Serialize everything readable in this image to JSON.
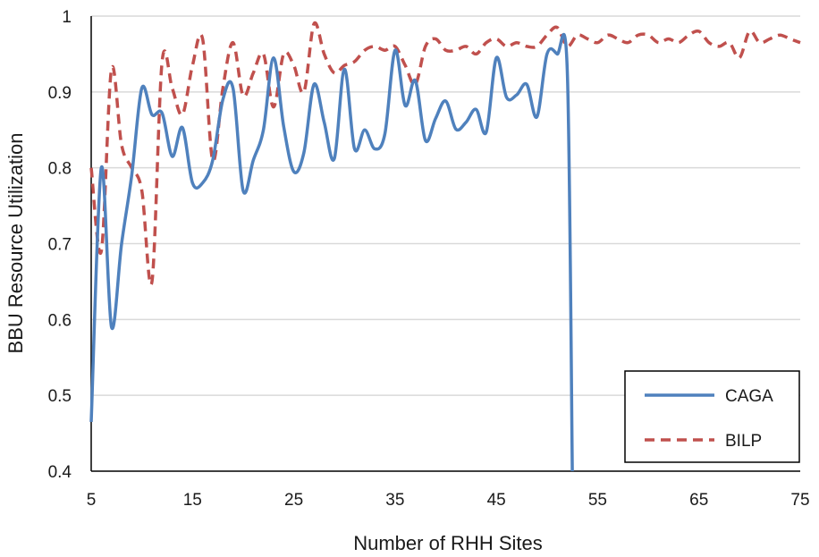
{
  "chart_data": {
    "type": "line",
    "title": "",
    "xlabel": "Number of RHH Sites",
    "ylabel": "BBU Resource Utilization",
    "xlim": [
      5,
      75
    ],
    "ylim": [
      0.4,
      1.0
    ],
    "xticks": [
      5,
      15,
      25,
      35,
      45,
      55,
      65,
      75
    ],
    "yticks": [
      0.4,
      0.5,
      0.6,
      0.7,
      0.8,
      0.9,
      1.0
    ],
    "ytick_labels": [
      "0.4",
      "0.5",
      "0.6",
      "0.7",
      "0.8",
      "0.9",
      "1"
    ],
    "grid": "horizontal",
    "legend_position": "bottom-right",
    "series": [
      {
        "name": "CAGA",
        "color": "#4f81bd",
        "style": "solid",
        "points": [
          [
            5,
            0.465
          ],
          [
            6,
            0.8
          ],
          [
            7,
            0.59
          ],
          [
            8,
            0.7
          ],
          [
            9,
            0.79
          ],
          [
            10,
            0.905
          ],
          [
            11,
            0.87
          ],
          [
            12,
            0.872
          ],
          [
            13,
            0.815
          ],
          [
            14,
            0.853
          ],
          [
            15,
            0.78
          ],
          [
            16,
            0.78
          ],
          [
            17,
            0.81
          ],
          [
            18,
            0.89
          ],
          [
            19,
            0.905
          ],
          [
            20,
            0.77
          ],
          [
            21,
            0.81
          ],
          [
            22,
            0.85
          ],
          [
            23,
            0.945
          ],
          [
            24,
            0.855
          ],
          [
            25,
            0.795
          ],
          [
            26,
            0.82
          ],
          [
            27,
            0.91
          ],
          [
            28,
            0.86
          ],
          [
            29,
            0.812
          ],
          [
            30,
            0.93
          ],
          [
            31,
            0.825
          ],
          [
            32,
            0.85
          ],
          [
            33,
            0.825
          ],
          [
            34,
            0.845
          ],
          [
            35,
            0.955
          ],
          [
            36,
            0.882
          ],
          [
            37,
            0.915
          ],
          [
            38,
            0.836
          ],
          [
            39,
            0.865
          ],
          [
            40,
            0.888
          ],
          [
            41,
            0.851
          ],
          [
            42,
            0.86
          ],
          [
            43,
            0.877
          ],
          [
            44,
            0.847
          ],
          [
            45,
            0.945
          ],
          [
            46,
            0.893
          ],
          [
            47,
            0.896
          ],
          [
            48,
            0.91
          ],
          [
            49,
            0.867
          ],
          [
            50,
            0.95
          ],
          [
            51,
            0.95
          ],
          [
            52,
            0.93
          ],
          [
            52.5,
            0.4
          ]
        ]
      },
      {
        "name": "BILP",
        "color": "#c0504d",
        "style": "dashed",
        "points": [
          [
            5,
            0.8
          ],
          [
            6,
            0.69
          ],
          [
            7,
            0.93
          ],
          [
            8,
            0.83
          ],
          [
            9,
            0.8
          ],
          [
            10,
            0.77
          ],
          [
            11,
            0.65
          ],
          [
            12,
            0.94
          ],
          [
            13,
            0.905
          ],
          [
            14,
            0.87
          ],
          [
            15,
            0.935
          ],
          [
            16,
            0.97
          ],
          [
            17,
            0.81
          ],
          [
            18,
            0.905
          ],
          [
            19,
            0.965
          ],
          [
            20,
            0.895
          ],
          [
            21,
            0.925
          ],
          [
            22,
            0.95
          ],
          [
            23,
            0.88
          ],
          [
            24,
            0.95
          ],
          [
            25,
            0.935
          ],
          [
            26,
            0.9
          ],
          [
            27,
            0.99
          ],
          [
            28,
            0.95
          ],
          [
            29,
            0.925
          ],
          [
            30,
            0.935
          ],
          [
            31,
            0.94
          ],
          [
            32,
            0.955
          ],
          [
            33,
            0.96
          ],
          [
            34,
            0.955
          ],
          [
            35,
            0.96
          ],
          [
            36,
            0.935
          ],
          [
            37,
            0.91
          ],
          [
            38,
            0.96
          ],
          [
            39,
            0.97
          ],
          [
            40,
            0.955
          ],
          [
            41,
            0.955
          ],
          [
            42,
            0.96
          ],
          [
            43,
            0.95
          ],
          [
            44,
            0.965
          ],
          [
            45,
            0.97
          ],
          [
            46,
            0.96
          ],
          [
            47,
            0.965
          ],
          [
            48,
            0.96
          ],
          [
            49,
            0.96
          ],
          [
            50,
            0.975
          ],
          [
            51,
            0.985
          ],
          [
            52,
            0.96
          ],
          [
            53,
            0.975
          ],
          [
            54,
            0.97
          ],
          [
            55,
            0.965
          ],
          [
            56,
            0.975
          ],
          [
            57,
            0.97
          ],
          [
            58,
            0.965
          ],
          [
            59,
            0.975
          ],
          [
            60,
            0.975
          ],
          [
            61,
            0.965
          ],
          [
            62,
            0.97
          ],
          [
            63,
            0.965
          ],
          [
            64,
            0.975
          ],
          [
            65,
            0.98
          ],
          [
            66,
            0.965
          ],
          [
            67,
            0.96
          ],
          [
            68,
            0.965
          ],
          [
            69,
            0.945
          ],
          [
            70,
            0.98
          ],
          [
            71,
            0.965
          ],
          [
            72,
            0.97
          ],
          [
            73,
            0.975
          ],
          [
            74,
            0.97
          ],
          [
            75,
            0.965
          ]
        ]
      }
    ]
  }
}
